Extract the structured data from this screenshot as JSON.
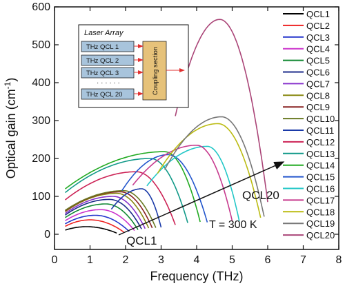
{
  "chart_data": {
    "type": "line",
    "xlabel": "Frequency (THz)",
    "ylabel": "Optical gain (cm",
    "ylabel_sup": "-1",
    "ylabel_close": ")",
    "xlim": [
      0,
      8
    ],
    "ylim": [
      -40,
      600
    ],
    "x_ticks": [
      0,
      1,
      2,
      3,
      4,
      5,
      6,
      7,
      8
    ],
    "y_ticks": [
      0,
      100,
      200,
      300,
      400,
      500,
      600
    ],
    "grid": false,
    "legend_position": "right",
    "annotations": {
      "temperature": "T = 300 K",
      "start_label": "QCL1",
      "end_label": "QCL20"
    },
    "inset": {
      "title": "Laser Array",
      "lasers": [
        "THz QCL 1",
        "THz QCL 2",
        "THz QCL 3",
        "THz QCL  20"
      ],
      "ellipsis": "· · · · · ·",
      "coupler": "Coupling section"
    },
    "series": [
      {
        "name": "QCL1",
        "color": "#000000",
        "x_start": 0.3,
        "x_end": 1.75,
        "x_peak": 0.9,
        "peak": 20
      },
      {
        "name": "QCL2",
        "color": "#ee2222",
        "x_start": 0.3,
        "x_end": 1.95,
        "x_peak": 1.0,
        "peak": 38
      },
      {
        "name": "QCL3",
        "color": "#2233cc",
        "x_start": 0.3,
        "x_end": 2.1,
        "x_peak": 1.15,
        "peak": 50
      },
      {
        "name": "QCL4",
        "color": "#cc33cc",
        "x_start": 0.3,
        "x_end": 2.25,
        "x_peak": 1.3,
        "peak": 65
      },
      {
        "name": "QCL5",
        "color": "#118833",
        "x_start": 0.3,
        "x_end": 2.35,
        "x_peak": 1.45,
        "peak": 80
      },
      {
        "name": "QCL6",
        "color": "#1a2a88",
        "x_start": 0.3,
        "x_end": 2.45,
        "x_peak": 1.55,
        "peak": 92
      },
      {
        "name": "QCL7",
        "color": "#8833cc",
        "x_start": 0.3,
        "x_end": 2.55,
        "x_peak": 1.65,
        "peak": 100
      },
      {
        "name": "QCL8",
        "color": "#888811",
        "x_start": 0.3,
        "x_end": 2.65,
        "x_peak": 1.75,
        "peak": 108
      },
      {
        "name": "QCL9",
        "color": "#882222",
        "x_start": 0.3,
        "x_end": 2.75,
        "x_peak": 1.85,
        "peak": 112
      },
      {
        "name": "QCL10",
        "color": "#6a7a22",
        "x_start": 0.3,
        "x_end": 2.85,
        "x_peak": 1.95,
        "peak": 115
      },
      {
        "name": "QCL11",
        "color": "#1a3aa8",
        "x_start": 1.6,
        "x_end": 3.0,
        "x_peak": 2.45,
        "peak": 120
      },
      {
        "name": "QCL12",
        "color": "#cc2255",
        "x_start": 0.3,
        "x_end": 3.4,
        "x_peak": 2.3,
        "peak": 165
      },
      {
        "name": "QCL13",
        "color": "#119988",
        "x_start": 0.3,
        "x_end": 3.75,
        "x_peak": 2.7,
        "peak": 200
      },
      {
        "name": "QCL14",
        "color": "#22aa22",
        "x_start": 0.3,
        "x_end": 4.1,
        "x_peak": 3.1,
        "peak": 218
      },
      {
        "name": "QCL15",
        "color": "#2255cc",
        "x_start": 1.9,
        "x_end": 4.3,
        "x_peak": 3.2,
        "peak": 210
      },
      {
        "name": "QCL16",
        "color": "#22c7c7",
        "x_start": 2.6,
        "x_end": 5.2,
        "x_peak": 4.3,
        "peak": 232
      },
      {
        "name": "QCL17",
        "color": "#c73a8e",
        "x_start": 2.2,
        "x_end": 5.0,
        "x_peak": 4.0,
        "peak": 235
      },
      {
        "name": "QCL18",
        "color": "#bbbb11",
        "x_start": 2.9,
        "x_end": 5.8,
        "x_peak": 4.6,
        "peak": 292
      },
      {
        "name": "QCL19",
        "color": "#777777",
        "x_start": 3.1,
        "x_end": 5.9,
        "x_peak": 4.7,
        "peak": 310
      },
      {
        "name": "QCL20",
        "color": "#aa4477",
        "x_start": 3.4,
        "x_end": 6.0,
        "x_peak": 4.65,
        "peak": 567
      }
    ]
  }
}
